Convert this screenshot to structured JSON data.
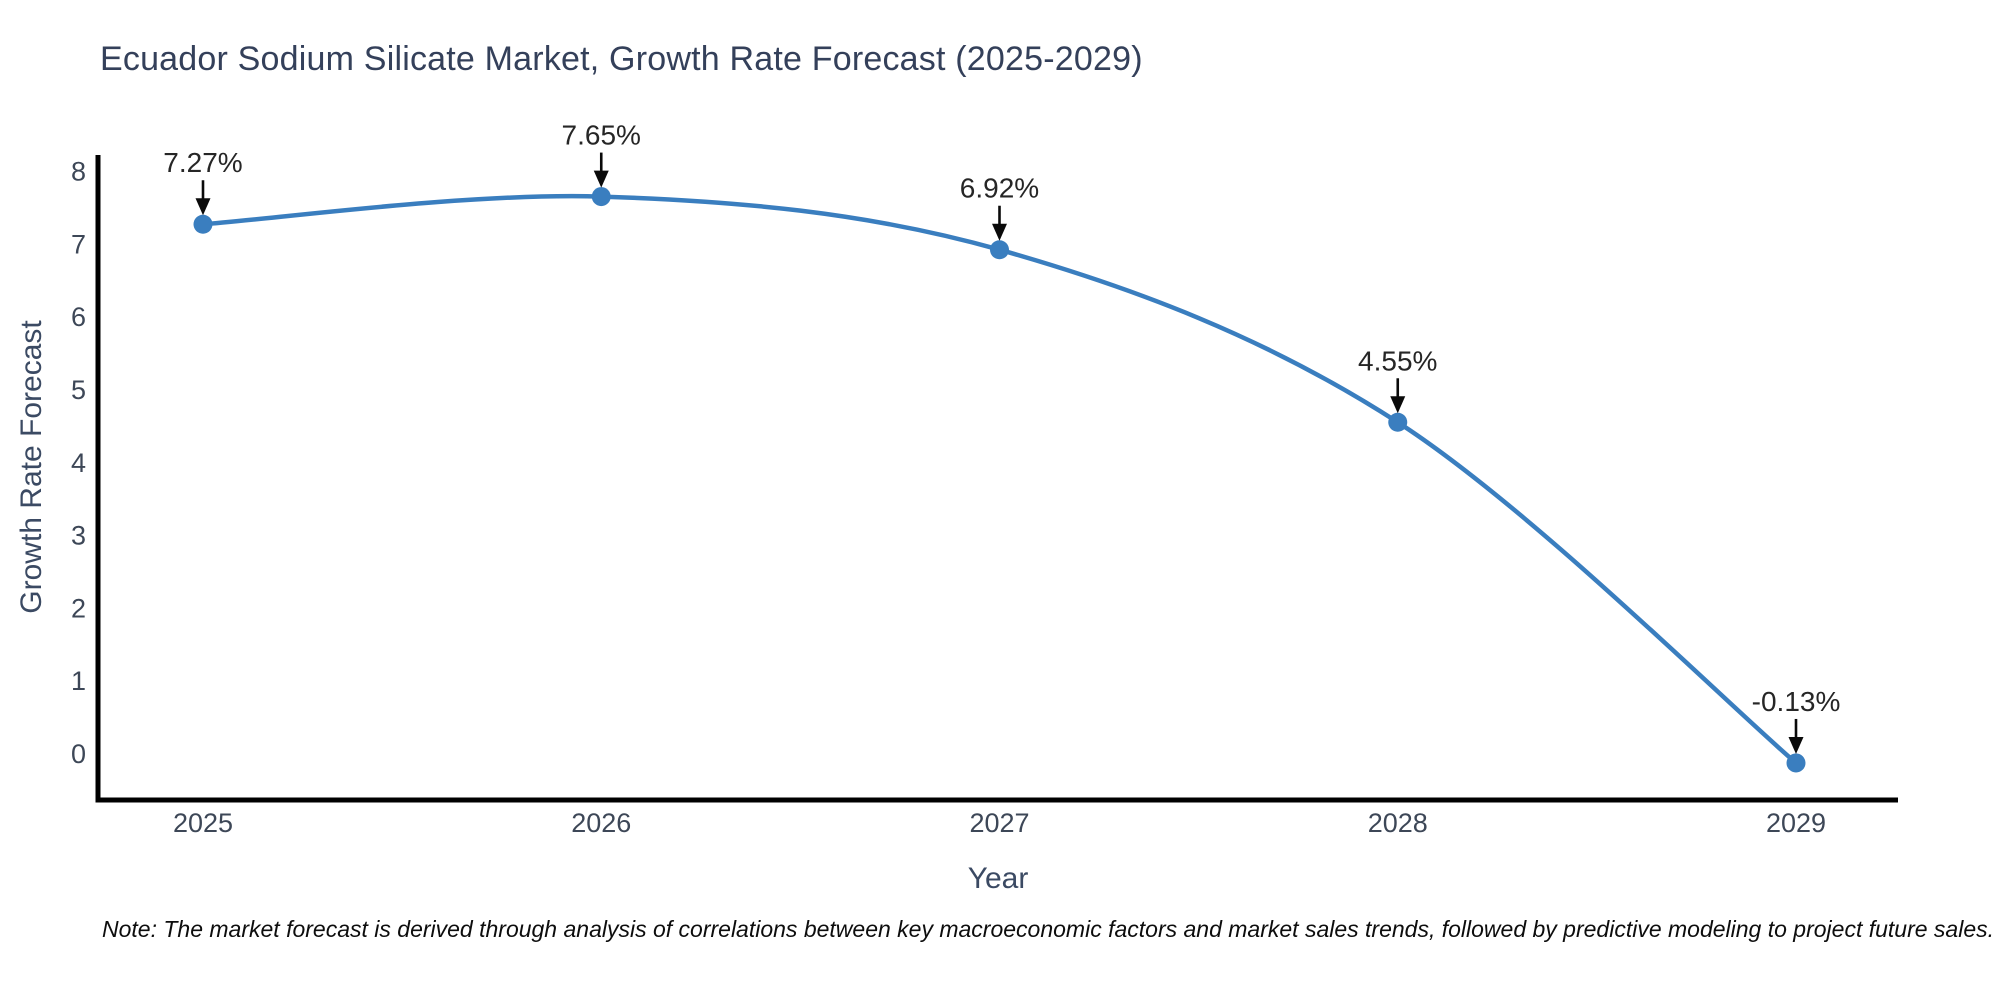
{
  "title": "Ecuador Sodium Silicate Market, Growth Rate Forecast (2025-2029)",
  "note": "Note: The market forecast is derived through analysis of correlations between key macroeconomic factors and market sales trends, followed by predictive modeling to project future sales.",
  "chart_data": {
    "type": "line",
    "title": "Ecuador Sodium Silicate Market, Growth Rate Forecast (2025-2029)",
    "xlabel": "Year",
    "ylabel": "Growth Rate Forecast",
    "categories": [
      "2025",
      "2026",
      "2027",
      "2028",
      "2029"
    ],
    "values": [
      7.27,
      7.65,
      6.92,
      4.55,
      -0.13
    ],
    "point_labels": [
      "7.27%",
      "7.65%",
      "6.92%",
      "4.55%",
      "-0.13%"
    ],
    "yticks": [
      0,
      1,
      2,
      3,
      4,
      5,
      6,
      7,
      8
    ],
    "ylim": [
      -0.64,
      8.22
    ],
    "grid": false,
    "legend": "none",
    "line_smooth": true,
    "annotation_style": "down-arrow",
    "colors": {
      "line": "#3a7ebf",
      "marker": "#3a7ebf",
      "annotation_text": "#262626",
      "arrow": "#0a0a0a",
      "axis_spine": "#000000",
      "tick_label": "#3d4757",
      "axis_title": "#3b4a63",
      "title": "#34405a",
      "background": "#ffffff"
    }
  }
}
